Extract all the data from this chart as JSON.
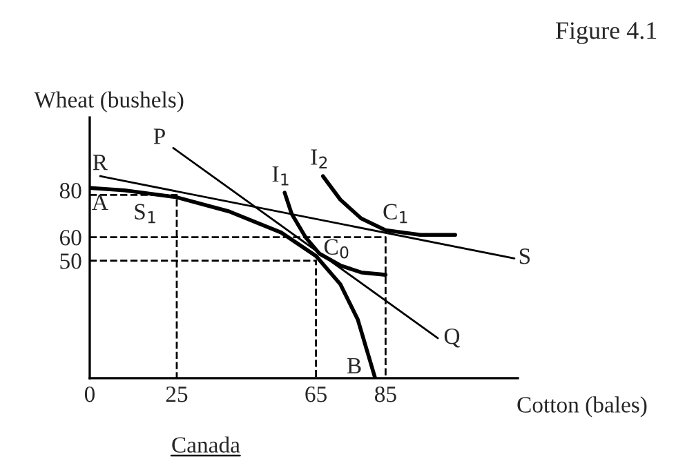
{
  "chart_data": {
    "type": "line",
    "title": "Figure 4.1",
    "xlabel": "Cotton (bales)",
    "ylabel": "Wheat (bushels)",
    "xlim": [
      0,
      123
    ],
    "ylim": [
      0,
      111
    ],
    "xticks": [
      0,
      25,
      65,
      85
    ],
    "yticks": [
      50,
      60,
      80
    ],
    "grid": false,
    "legend": false,
    "marker": "none",
    "series": [
      {
        "color": "#000000",
        "line_style": "solid",
        "x": [
          0,
          10,
          25,
          40,
          55,
          65,
          72,
          77,
          80,
          82
        ],
        "values": [
          81,
          80,
          77,
          71,
          62,
          52,
          40,
          25,
          10,
          0
        ]
      },
      {
        "color": "#000000",
        "line_style": "solid",
        "x": [
          3,
          122
        ],
        "values": [
          86,
          51
        ]
      },
      {
        "color": "#000000",
        "line_style": "solid",
        "x": [
          24,
          100
        ],
        "values": [
          98,
          17
        ]
      },
      {
        "color": "#000000",
        "line_style": "solid",
        "x": [
          56,
          58,
          62,
          66,
          72,
          78,
          85
        ],
        "values": [
          79,
          70,
          60,
          53,
          48,
          45,
          44
        ]
      },
      {
        "color": "#000000",
        "line_style": "solid",
        "x": [
          67,
          72,
          78,
          85,
          95,
          105
        ],
        "values": [
          86,
          76,
          68,
          63,
          61,
          61
        ]
      },
      {
        "color": "#000000",
        "line_style": "dashed",
        "x": [
          0,
          25,
          25
        ],
        "values": [
          78,
          78,
          0
        ]
      },
      {
        "color": "#000000",
        "line_style": "dashed",
        "x": [
          0,
          85,
          85
        ],
        "values": [
          60,
          60,
          0
        ]
      },
      {
        "color": "#000000",
        "line_style": "dashed",
        "x": [
          0,
          65,
          65
        ],
        "values": [
          50,
          50,
          0
        ]
      }
    ],
    "annotations": [
      "R",
      "A",
      "S$_{1}$",
      "P",
      "I$_{1}$",
      "I$_{2}$",
      "C$_{1}$",
      "C$_{0}$",
      "S",
      "Q",
      "B",
      "Canada"
    ]
  }
}
